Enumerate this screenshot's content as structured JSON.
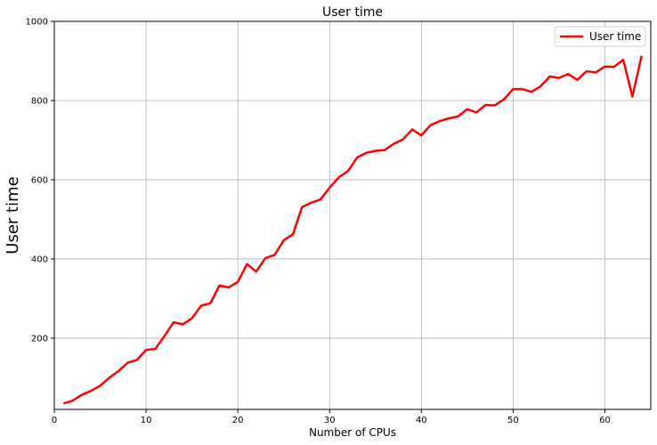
{
  "chart_data": {
    "type": "line",
    "title": "User time",
    "xlabel": "Number of CPUs",
    "ylabel": "User time",
    "xlim": [
      0,
      65
    ],
    "ylim": [
      20,
      1000
    ],
    "xticks": [
      0,
      10,
      20,
      30,
      40,
      50,
      60
    ],
    "yticks": [
      200,
      400,
      600,
      800,
      1000
    ],
    "grid": true,
    "legend_position": "top-right",
    "series": [
      {
        "name": "User time",
        "color": "#ff0000",
        "x": [
          1,
          2,
          3,
          4,
          5,
          6,
          7,
          8,
          9,
          10,
          11,
          12,
          13,
          14,
          15,
          16,
          17,
          18,
          19,
          20,
          21,
          22,
          23,
          24,
          25,
          26,
          27,
          28,
          29,
          30,
          31,
          32,
          33,
          34,
          35,
          36,
          37,
          38,
          39,
          40,
          41,
          42,
          43,
          44,
          45,
          46,
          47,
          48,
          49,
          50,
          51,
          52,
          53,
          54,
          55,
          56,
          57,
          58,
          59,
          60,
          61,
          62,
          63,
          64
        ],
        "y": [
          35,
          42,
          57,
          67,
          80,
          100,
          117,
          138,
          145,
          170,
          173,
          205,
          240,
          235,
          250,
          282,
          288,
          333,
          328,
          342,
          387,
          368,
          402,
          410,
          447,
          462,
          531,
          542,
          550,
          580,
          606,
          622,
          656,
          668,
          673,
          675,
          691,
          702,
          727,
          712,
          738,
          748,
          755,
          760,
          778,
          770,
          789,
          788,
          803,
          829,
          829,
          822,
          836,
          861,
          857,
          867,
          852,
          874,
          871,
          886,
          885,
          903,
          810,
          913
        ]
      }
    ]
  }
}
